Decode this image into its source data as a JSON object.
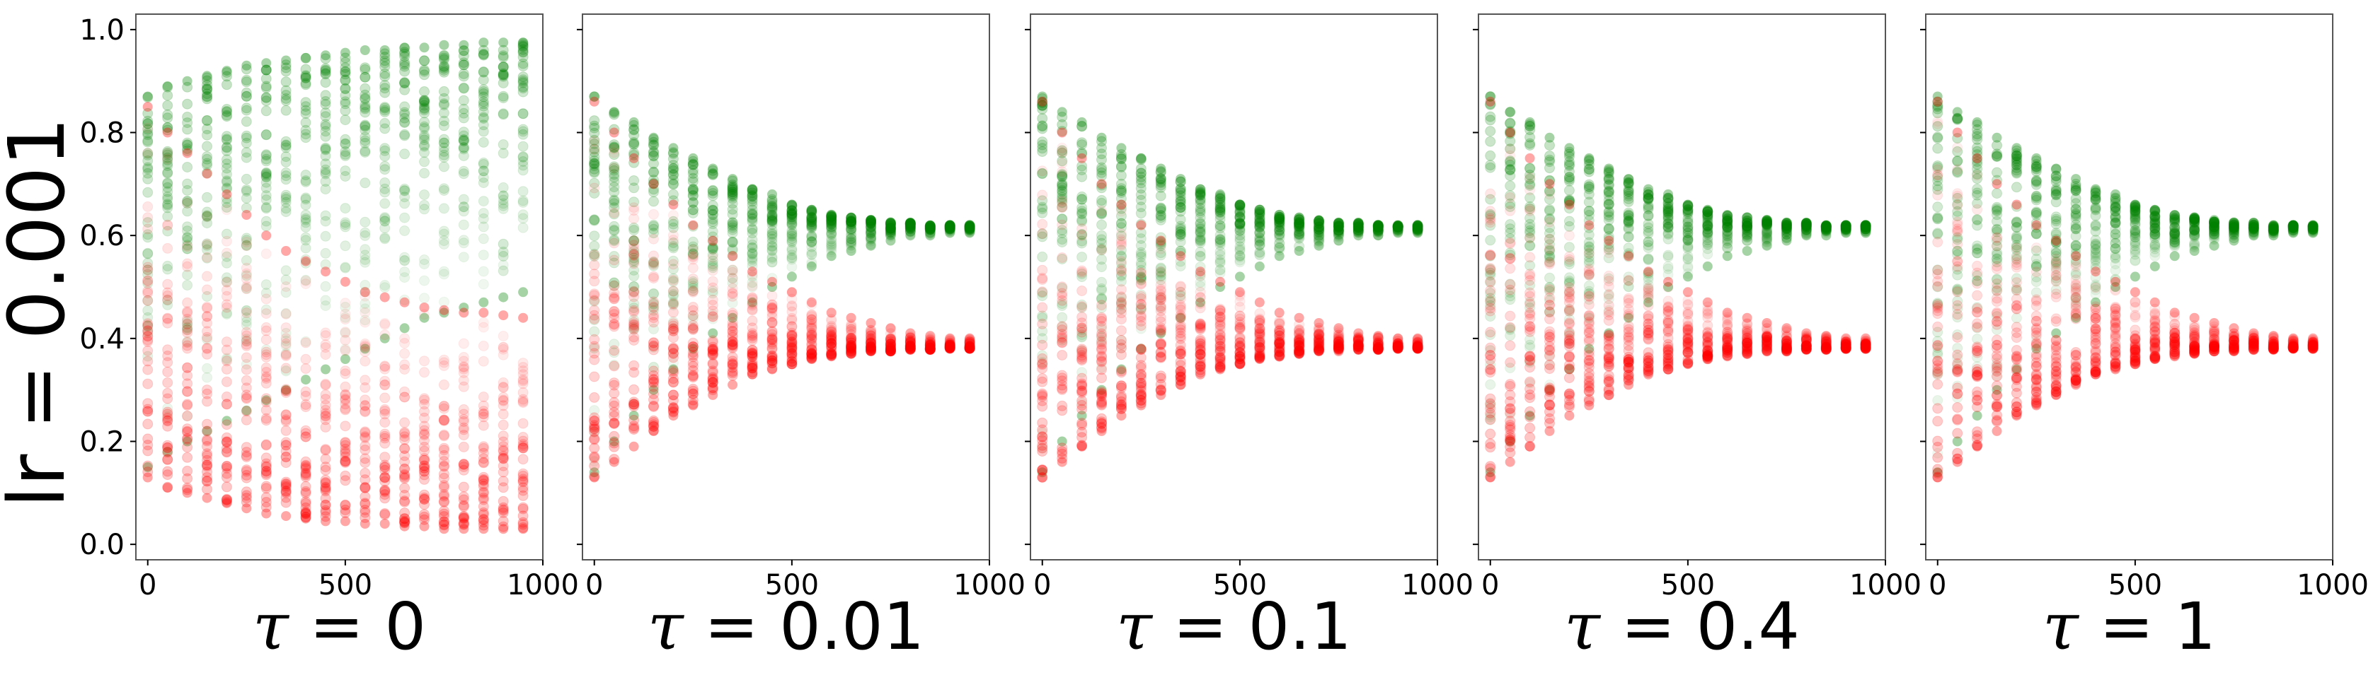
{
  "figure": {
    "row_label": "lr = 0.001",
    "colors": {
      "upper": "#008000",
      "lower": "#ff0000",
      "frame": "#555555"
    }
  },
  "chart_data": [
    {
      "type": "scatter",
      "title": "τ = 0",
      "tau_symbol": "τ",
      "tau_value": "0",
      "xlabel": "τ = 0",
      "ylabel": "lr = 0.001",
      "xlim": [
        -30,
        1000
      ],
      "ylim": [
        -0.03,
        1.03
      ],
      "xticks": [
        0,
        500,
        1000
      ],
      "xtick_labels": [
        "0",
        "500",
        "1000"
      ],
      "yticks": [
        0.0,
        0.2,
        0.4,
        0.6,
        0.8,
        1.0
      ],
      "ytick_labels": [
        "0.0",
        "0.2",
        "0.4",
        "0.6",
        "0.8",
        "1.0"
      ],
      "grid": false,
      "x": [
        0,
        50,
        100,
        150,
        200,
        250,
        300,
        350,
        400,
        450,
        500,
        550,
        600,
        650,
        700,
        750,
        800,
        850,
        900,
        950
      ],
      "series": [
        {
          "color": "#008000",
          "min": [
            0.15,
            0.18,
            0.2,
            0.22,
            0.24,
            0.26,
            0.28,
            0.3,
            0.32,
            0.34,
            0.36,
            0.38,
            0.4,
            0.42,
            0.44,
            0.45,
            0.46,
            0.47,
            0.48,
            0.49
          ],
          "max": [
            0.87,
            0.89,
            0.9,
            0.91,
            0.92,
            0.93,
            0.935,
            0.94,
            0.945,
            0.95,
            0.955,
            0.96,
            0.96,
            0.965,
            0.965,
            0.97,
            0.97,
            0.975,
            0.975,
            0.975
          ]
        },
        {
          "color": "#ff0000",
          "min": [
            0.13,
            0.11,
            0.1,
            0.09,
            0.08,
            0.07,
            0.06,
            0.055,
            0.05,
            0.045,
            0.045,
            0.04,
            0.04,
            0.035,
            0.035,
            0.03,
            0.03,
            0.03,
            0.03,
            0.03
          ],
          "max": [
            0.85,
            0.8,
            0.76,
            0.72,
            0.68,
            0.64,
            0.6,
            0.57,
            0.55,
            0.53,
            0.51,
            0.49,
            0.48,
            0.47,
            0.46,
            0.455,
            0.45,
            0.45,
            0.445,
            0.44
          ]
        }
      ]
    },
    {
      "type": "scatter",
      "title": "τ = 0.01",
      "tau_symbol": "τ",
      "tau_value": "0.01",
      "xlabel": "τ = 0.01",
      "xlim": [
        -30,
        1000
      ],
      "ylim": [
        -0.03,
        1.03
      ],
      "xticks": [
        0,
        500,
        1000
      ],
      "xtick_labels": [
        "0",
        "500",
        "1000"
      ],
      "grid": false,
      "x": [
        0,
        50,
        100,
        150,
        200,
        250,
        300,
        350,
        400,
        450,
        500,
        550,
        600,
        650,
        700,
        750,
        800,
        850,
        900,
        950
      ],
      "series": [
        {
          "color": "#008000",
          "min": [
            0.14,
            0.2,
            0.25,
            0.3,
            0.34,
            0.38,
            0.41,
            0.44,
            0.47,
            0.5,
            0.52,
            0.54,
            0.56,
            0.57,
            0.58,
            0.59,
            0.6,
            0.6,
            0.605,
            0.605
          ],
          "max": [
            0.87,
            0.84,
            0.82,
            0.79,
            0.77,
            0.75,
            0.73,
            0.71,
            0.69,
            0.68,
            0.66,
            0.65,
            0.64,
            0.635,
            0.63,
            0.625,
            0.625,
            0.62,
            0.62,
            0.62
          ]
        },
        {
          "color": "#ff0000",
          "min": [
            0.13,
            0.16,
            0.19,
            0.22,
            0.25,
            0.27,
            0.29,
            0.31,
            0.33,
            0.34,
            0.35,
            0.36,
            0.365,
            0.37,
            0.375,
            0.375,
            0.378,
            0.378,
            0.38,
            0.38
          ],
          "max": [
            0.86,
            0.8,
            0.75,
            0.7,
            0.66,
            0.62,
            0.59,
            0.56,
            0.53,
            0.51,
            0.49,
            0.47,
            0.45,
            0.44,
            0.43,
            0.42,
            0.41,
            0.405,
            0.4,
            0.4
          ]
        }
      ]
    },
    {
      "type": "scatter",
      "title": "τ = 0.1",
      "tau_symbol": "τ",
      "tau_value": "0.1",
      "xlabel": "τ = 0.1",
      "xlim": [
        -30,
        1000
      ],
      "ylim": [
        -0.03,
        1.03
      ],
      "xticks": [
        0,
        500,
        1000
      ],
      "xtick_labels": [
        "0",
        "500",
        "1000"
      ],
      "grid": false,
      "x": [
        0,
        50,
        100,
        150,
        200,
        250,
        300,
        350,
        400,
        450,
        500,
        550,
        600,
        650,
        700,
        750,
        800,
        850,
        900,
        950
      ],
      "series": [
        {
          "color": "#008000",
          "min": [
            0.14,
            0.2,
            0.25,
            0.3,
            0.34,
            0.38,
            0.41,
            0.44,
            0.47,
            0.5,
            0.52,
            0.54,
            0.56,
            0.57,
            0.58,
            0.59,
            0.6,
            0.6,
            0.605,
            0.605
          ],
          "max": [
            0.87,
            0.84,
            0.82,
            0.79,
            0.77,
            0.75,
            0.73,
            0.71,
            0.69,
            0.68,
            0.66,
            0.65,
            0.64,
            0.635,
            0.63,
            0.625,
            0.625,
            0.62,
            0.62,
            0.62
          ]
        },
        {
          "color": "#ff0000",
          "min": [
            0.13,
            0.16,
            0.19,
            0.22,
            0.25,
            0.27,
            0.29,
            0.31,
            0.33,
            0.34,
            0.35,
            0.36,
            0.365,
            0.37,
            0.375,
            0.375,
            0.378,
            0.378,
            0.38,
            0.38
          ],
          "max": [
            0.86,
            0.8,
            0.75,
            0.7,
            0.66,
            0.62,
            0.59,
            0.56,
            0.53,
            0.51,
            0.49,
            0.47,
            0.45,
            0.44,
            0.43,
            0.42,
            0.41,
            0.405,
            0.4,
            0.4
          ]
        }
      ]
    },
    {
      "type": "scatter",
      "title": "τ = 0.4",
      "tau_symbol": "τ",
      "tau_value": "0.4",
      "xlabel": "τ = 0.4",
      "xlim": [
        -30,
        1000
      ],
      "ylim": [
        -0.03,
        1.03
      ],
      "xticks": [
        0,
        500,
        1000
      ],
      "xtick_labels": [
        "0",
        "500",
        "1000"
      ],
      "grid": false,
      "x": [
        0,
        50,
        100,
        150,
        200,
        250,
        300,
        350,
        400,
        450,
        500,
        550,
        600,
        650,
        700,
        750,
        800,
        850,
        900,
        950
      ],
      "series": [
        {
          "color": "#008000",
          "min": [
            0.14,
            0.2,
            0.25,
            0.3,
            0.34,
            0.38,
            0.41,
            0.44,
            0.47,
            0.5,
            0.52,
            0.54,
            0.56,
            0.57,
            0.58,
            0.59,
            0.6,
            0.6,
            0.605,
            0.605
          ],
          "max": [
            0.87,
            0.84,
            0.82,
            0.79,
            0.77,
            0.75,
            0.73,
            0.71,
            0.69,
            0.68,
            0.66,
            0.65,
            0.64,
            0.635,
            0.63,
            0.625,
            0.625,
            0.62,
            0.62,
            0.62
          ]
        },
        {
          "color": "#ff0000",
          "min": [
            0.13,
            0.16,
            0.19,
            0.22,
            0.25,
            0.27,
            0.29,
            0.31,
            0.33,
            0.34,
            0.35,
            0.36,
            0.365,
            0.37,
            0.375,
            0.375,
            0.378,
            0.378,
            0.38,
            0.38
          ],
          "max": [
            0.86,
            0.8,
            0.75,
            0.7,
            0.66,
            0.62,
            0.59,
            0.56,
            0.53,
            0.51,
            0.49,
            0.47,
            0.45,
            0.44,
            0.43,
            0.42,
            0.41,
            0.405,
            0.4,
            0.4
          ]
        }
      ]
    },
    {
      "type": "scatter",
      "title": "τ = 1",
      "tau_symbol": "τ",
      "tau_value": "1",
      "xlabel": "τ = 1",
      "xlim": [
        -30,
        1000
      ],
      "ylim": [
        -0.03,
        1.03
      ],
      "xticks": [
        0,
        500,
        1000
      ],
      "xtick_labels": [
        "0",
        "500",
        "1000"
      ],
      "grid": false,
      "x": [
        0,
        50,
        100,
        150,
        200,
        250,
        300,
        350,
        400,
        450,
        500,
        550,
        600,
        650,
        700,
        750,
        800,
        850,
        900,
        950
      ],
      "series": [
        {
          "color": "#008000",
          "min": [
            0.14,
            0.2,
            0.25,
            0.3,
            0.34,
            0.38,
            0.41,
            0.44,
            0.47,
            0.5,
            0.52,
            0.54,
            0.56,
            0.57,
            0.58,
            0.59,
            0.6,
            0.6,
            0.605,
            0.605
          ],
          "max": [
            0.87,
            0.84,
            0.82,
            0.79,
            0.77,
            0.75,
            0.73,
            0.71,
            0.69,
            0.68,
            0.66,
            0.65,
            0.64,
            0.635,
            0.63,
            0.625,
            0.625,
            0.62,
            0.62,
            0.62
          ]
        },
        {
          "color": "#ff0000",
          "min": [
            0.13,
            0.16,
            0.19,
            0.22,
            0.25,
            0.27,
            0.29,
            0.31,
            0.33,
            0.34,
            0.35,
            0.36,
            0.365,
            0.37,
            0.375,
            0.375,
            0.378,
            0.378,
            0.38,
            0.38
          ],
          "max": [
            0.86,
            0.8,
            0.75,
            0.7,
            0.66,
            0.62,
            0.59,
            0.56,
            0.53,
            0.51,
            0.49,
            0.47,
            0.45,
            0.44,
            0.43,
            0.42,
            0.41,
            0.405,
            0.4,
            0.4
          ]
        }
      ]
    }
  ]
}
